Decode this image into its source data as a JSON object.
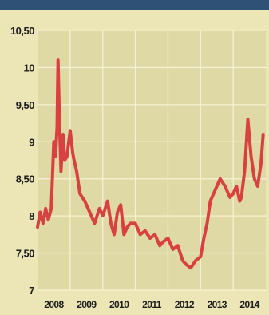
{
  "colors": {
    "background": "#ece6b6",
    "plot_background": "#dfd9a6",
    "grid": "#f6f2d2",
    "line": "#d94040",
    "header": "#2e5175"
  },
  "chart_data": {
    "type": "line",
    "title": "",
    "xlabel": "",
    "ylabel": "",
    "ylim": [
      7,
      10.5
    ],
    "xlim": [
      2008,
      2015
    ],
    "grid": true,
    "yticks": [
      7,
      7.5,
      8,
      8.5,
      9,
      9.5,
      10,
      10.5
    ],
    "ytick_labels": [
      "7",
      "7,50",
      "8",
      "8,50",
      "9",
      "9,50",
      "10",
      "10,50"
    ],
    "xtick_labels": [
      "2008",
      "2009",
      "2010",
      "2011",
      "2012",
      "2013",
      "2014"
    ],
    "series": [
      {
        "x": [
          2008.0,
          2008.08,
          2008.17,
          2008.25,
          2008.33,
          2008.42,
          2008.5,
          2008.55,
          2008.6,
          2008.63,
          2008.67,
          2008.72,
          2008.78,
          2008.83,
          2008.9,
          2009.0,
          2009.08,
          2009.12,
          2009.2,
          2009.3,
          2009.45,
          2009.6,
          2009.75,
          2009.9,
          2010.0,
          2010.15,
          2010.25,
          2010.35,
          2010.45,
          2010.55,
          2010.65,
          2010.75,
          2010.85,
          2011.0,
          2011.15,
          2011.3,
          2011.45,
          2011.6,
          2011.75,
          2011.85,
          2012.0,
          2012.15,
          2012.3,
          2012.45,
          2012.55,
          2012.7,
          2012.85,
          2013.0,
          2013.1,
          2013.2,
          2013.3,
          2013.45,
          2013.6,
          2013.75,
          2013.9,
          2014.0,
          2014.1,
          2014.2,
          2014.25,
          2014.35,
          2014.45,
          2014.55,
          2014.65,
          2014.75,
          2014.85,
          2014.92
        ],
        "y": [
          7.85,
          8.05,
          7.9,
          8.1,
          7.95,
          8.1,
          9.0,
          8.8,
          9.2,
          10.1,
          9.3,
          8.6,
          9.1,
          8.75,
          8.8,
          9.15,
          8.85,
          8.75,
          8.6,
          8.3,
          8.2,
          8.05,
          7.9,
          8.1,
          8.0,
          8.2,
          7.9,
          7.75,
          8.05,
          8.15,
          7.75,
          7.85,
          7.9,
          7.9,
          7.75,
          7.8,
          7.7,
          7.75,
          7.6,
          7.65,
          7.7,
          7.55,
          7.6,
          7.4,
          7.35,
          7.3,
          7.4,
          7.45,
          7.7,
          7.9,
          8.2,
          8.35,
          8.5,
          8.4,
          8.25,
          8.3,
          8.4,
          8.2,
          8.25,
          8.6,
          9.3,
          8.8,
          8.5,
          8.4,
          8.7,
          9.1
        ]
      }
    ]
  }
}
